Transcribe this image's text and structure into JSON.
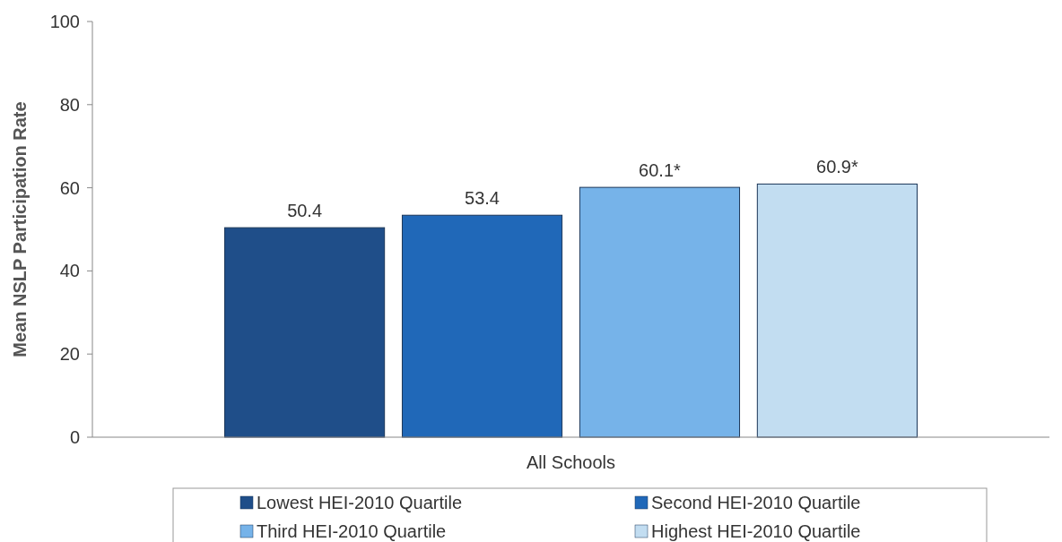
{
  "chart_data": {
    "type": "bar",
    "ylabel": "Mean NSLP Participation Rate",
    "categories": [
      "All Schools"
    ],
    "ylim": [
      0,
      100
    ],
    "yticks": [
      0,
      20,
      40,
      60,
      80,
      100
    ],
    "grid": false,
    "legend": "bottom",
    "series": [
      {
        "name": "Lowest HEI-2010 Quartile",
        "color": "#1f4e89",
        "values": [
          50.4
        ],
        "value_labels": [
          "50.4"
        ]
      },
      {
        "name": "Second HEI-2010 Quartile",
        "color": "#2068b8",
        "values": [
          53.4
        ],
        "value_labels": [
          "53.4"
        ]
      },
      {
        "name": "Third HEI-2010 Quartile",
        "color": "#76b3e9",
        "values": [
          60.1
        ],
        "value_labels": [
          "60.1*"
        ]
      },
      {
        "name": "Highest HEI-2010 Quartile",
        "color": "#c2ddf1",
        "values": [
          60.9
        ],
        "value_labels": [
          "60.9*"
        ]
      }
    ]
  }
}
